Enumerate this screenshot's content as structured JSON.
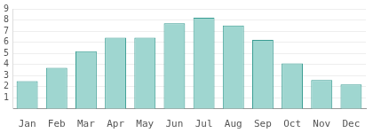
{
  "chart_data": {
    "type": "bar",
    "categories": [
      "Jan",
      "Feb",
      "Mar",
      "Apr",
      "May",
      "Jun",
      "Jul",
      "Aug",
      "Sep",
      "Oct",
      "Nov",
      "Dec"
    ],
    "values": [
      2.5,
      3.7,
      5.2,
      6.4,
      6.4,
      7.7,
      8.2,
      7.5,
      6.2,
      4.1,
      2.6,
      2.2
    ],
    "color": "#9fd6d0",
    "ylim": [
      0,
      9
    ],
    "yticks": [
      1,
      2,
      3,
      4,
      5,
      6,
      7,
      8,
      9
    ],
    "grid": true
  }
}
